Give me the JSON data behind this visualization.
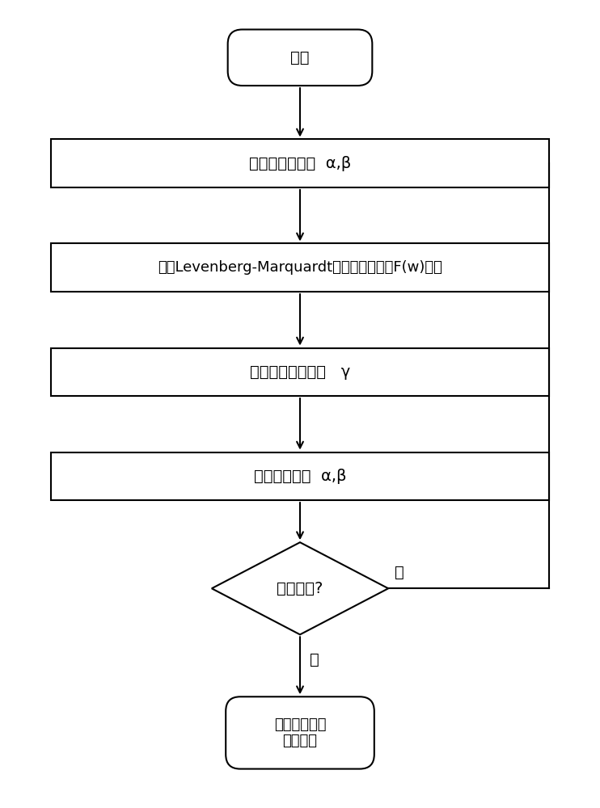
{
  "bg_color": "#ffffff",
  "line_color": "#000000",
  "box_color": "#ffffff",
  "text_color": "#000000",
  "start_text": "开始",
  "init_text": "初始化性能参数  α,β",
  "lm_text": "利用Levenberg-Marquardt算法使目标函数F(w)最小",
  "gamma_text": "计算有效参数个数   γ",
  "update_text": "更新性能参数  α,β",
  "conv_text": "是否收敛?",
  "end_text": "结束，返回性\n能参数值",
  "yes_label": "是",
  "no_label": "否",
  "font_size": 14,
  "font_size_lm": 13,
  "font_size_end": 13
}
